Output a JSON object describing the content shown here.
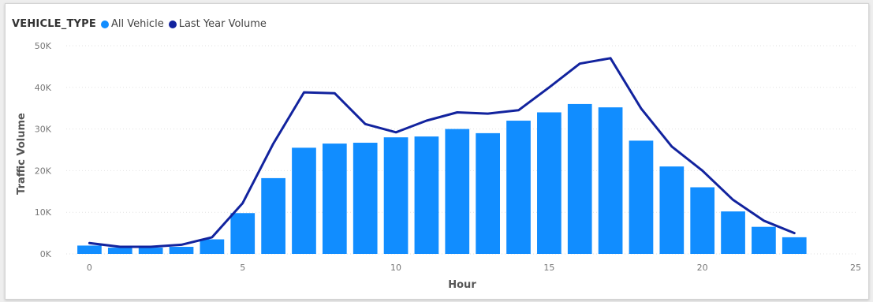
{
  "chart_data": {
    "type": "bar",
    "legend": {
      "title": "VEHICLE_TYPE",
      "placement": "top-left"
    },
    "xlabel": "Hour",
    "ylabel": "Traffic Volume",
    "xlim": [
      -0.5,
      25
    ],
    "ylim": [
      0,
      50000
    ],
    "x_ticks": [
      0,
      5,
      10,
      15,
      20,
      25
    ],
    "x_tick_labels": [
      "0",
      "5",
      "10",
      "15",
      "20",
      "25"
    ],
    "y_ticks": [
      0,
      10000,
      20000,
      30000,
      40000,
      50000
    ],
    "y_tick_labels": [
      "0K",
      "10K",
      "20K",
      "30K",
      "40K",
      "50K"
    ],
    "grid": true,
    "x": [
      0,
      1,
      2,
      3,
      4,
      5,
      6,
      7,
      8,
      9,
      10,
      11,
      12,
      13,
      14,
      15,
      16,
      17,
      18,
      19,
      20,
      21,
      22,
      23
    ],
    "series": [
      {
        "name": "All Vehicle",
        "type": "bar",
        "color": "#118dff",
        "values": [
          2000,
          1500,
          1500,
          1700,
          3500,
          9800,
          18200,
          25500,
          26500,
          26700,
          28000,
          28200,
          30000,
          29000,
          32000,
          34000,
          36000,
          35200,
          27200,
          21000,
          16000,
          10200,
          6500,
          4000
        ]
      },
      {
        "name": "Last Year Volume",
        "type": "line",
        "color": "#12239e",
        "values": [
          2600,
          1700,
          1700,
          2200,
          4000,
          12200,
          26500,
          38800,
          38600,
          31200,
          29200,
          32000,
          34000,
          33700,
          34500,
          40000,
          45700,
          47000,
          34900,
          25800,
          20000,
          13000,
          8000,
          5000
        ]
      }
    ]
  }
}
